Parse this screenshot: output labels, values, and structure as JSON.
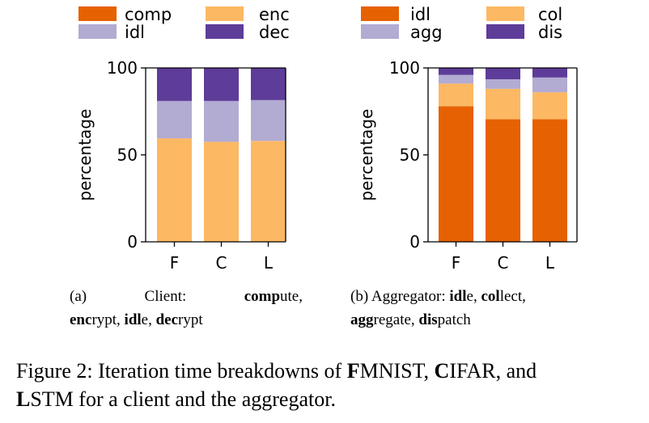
{
  "colors": {
    "comp": "#e66101",
    "enc": "#fdb863",
    "idl_light": "#b2abd2",
    "dec": "#5e3c99",
    "agg_idl": "#e66101",
    "agg_col": "#fdb863",
    "agg_agg": "#b2abd2",
    "agg_dis": "#5e3c99"
  },
  "chart_data": [
    {
      "type": "bar",
      "stacked": true,
      "categories": [
        "F",
        "C",
        "L"
      ],
      "ylabel": "percentage",
      "ylim": [
        0,
        100
      ],
      "yticks": [
        0,
        50,
        100
      ],
      "legend": [
        "comp",
        "idl",
        "enc",
        "dec"
      ],
      "series": [
        {
          "name": "comp",
          "values": [
            0,
            0,
            0
          ]
        },
        {
          "name": "enc",
          "values": [
            59.5,
            57.5,
            58
          ]
        },
        {
          "name": "idl",
          "values": [
            21.5,
            23.5,
            23.5
          ]
        },
        {
          "name": "dec",
          "values": [
            19,
            19,
            18.5
          ]
        }
      ]
    },
    {
      "type": "bar",
      "stacked": true,
      "categories": [
        "F",
        "C",
        "L"
      ],
      "ylabel": "percentage",
      "ylim": [
        0,
        100
      ],
      "yticks": [
        0,
        50,
        100
      ],
      "legend": [
        "idl",
        "agg",
        "col",
        "dis"
      ],
      "series": [
        {
          "name": "idl",
          "values": [
            78,
            70.5,
            70.5
          ]
        },
        {
          "name": "col",
          "values": [
            13,
            17.5,
            15.5
          ]
        },
        {
          "name": "agg",
          "values": [
            5,
            5.5,
            8.5
          ]
        },
        {
          "name": "dis",
          "values": [
            4,
            6.5,
            5.5
          ]
        }
      ]
    }
  ],
  "captions": {
    "a": {
      "label": "(a)",
      "word1": "Client:",
      "k1": "comp",
      "r1": "ute,",
      "k2": "enc",
      "r2": "rypt, ",
      "k3": "idl",
      "r3": "e, ",
      "k4": "dec",
      "r4": "rypt"
    },
    "b": {
      "label": "(b) Aggregator: ",
      "k1": "idl",
      "r1": "e, ",
      "k2": "col",
      "r2": "lect,",
      "k3": "agg",
      "r3": "regate, ",
      "k4": "dis",
      "r4": "patch"
    },
    "figure": {
      "p1": "Figure 2: Iteration time breakdowns of ",
      "k1": "F",
      "r1": "MNIST, ",
      "k2": "C",
      "r2": "IFAR, and",
      "k3": "L",
      "r3": "STM for a client and the aggregator."
    }
  }
}
